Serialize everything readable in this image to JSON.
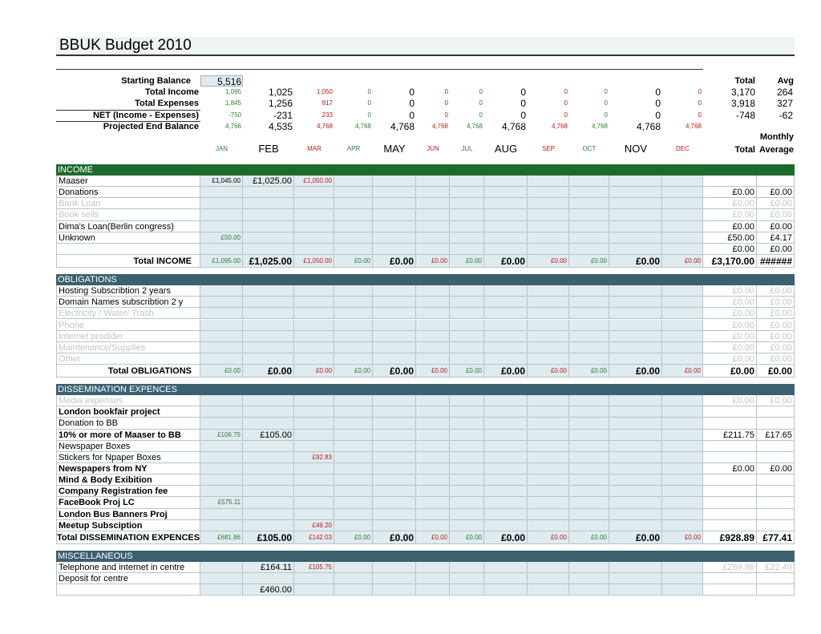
{
  "title": "BBUK Budget 2010",
  "columns": [
    {
      "name": "JAN",
      "color": "#2e7d32",
      "size": "small"
    },
    {
      "name": "FEB",
      "color": "#000000",
      "size": "big"
    },
    {
      "name": "MAR",
      "color": "#b71c1c",
      "size": "small"
    },
    {
      "name": "APR",
      "color": "#2e7d32",
      "size": "small"
    },
    {
      "name": "MAY",
      "color": "#000000",
      "size": "big"
    },
    {
      "name": "JUN",
      "color": "#b71c1c",
      "size": "small"
    },
    {
      "name": "JUL",
      "color": "#2e7d32",
      "size": "small"
    },
    {
      "name": "AUG",
      "color": "#000000",
      "size": "big"
    },
    {
      "name": "SEP",
      "color": "#b71c1c",
      "size": "small"
    },
    {
      "name": "OCT",
      "color": "#2e7d32",
      "size": "small"
    },
    {
      "name": "NOV",
      "color": "#000000",
      "size": "big"
    },
    {
      "name": "DEC",
      "color": "#b71c1c",
      "size": "small"
    }
  ],
  "summary": {
    "starting_balance": {
      "label": "Starting Balance",
      "value": "5,516"
    },
    "total_header": "Total",
    "avg_header": "Avg",
    "rows": [
      {
        "label": "Total Income",
        "cells": [
          "1,095",
          "1,025",
          "1,050",
          "0",
          "0",
          "0",
          "0",
          "0",
          "0",
          "0",
          "0",
          "0",
          "3,170",
          "264"
        ]
      },
      {
        "label": "Total Expenses",
        "cells": [
          "1,845",
          "1,256",
          "817",
          "0",
          "0",
          "0",
          "0",
          "0",
          "0",
          "0",
          "0",
          "0",
          "3,918",
          "327"
        ]
      },
      {
        "label": "NET (Income - Expenses)",
        "cells": [
          "-750",
          "-231",
          "233",
          "0",
          "0",
          "0",
          "0",
          "0",
          "0",
          "0",
          "0",
          "0",
          "-748",
          "-62"
        ]
      },
      {
        "label": "Projected End Balance",
        "cells": [
          "4,766",
          "4,535",
          "4,768",
          "4,768",
          "4,768",
          "4,768",
          "4,768",
          "4,768",
          "4,768",
          "4,768",
          "4,768",
          "4,768",
          null,
          null
        ]
      }
    ]
  },
  "monthly_header": "Monthly",
  "total_header": "Total",
  "average_header": "Average",
  "sections": [
    {
      "title": "INCOME",
      "color": "#1d6b2c",
      "rows": [
        {
          "label": "Maaser",
          "cells": [
            "£1,045.00",
            "£1,025.00",
            "£1,050.00",
            null,
            null,
            null,
            null,
            null,
            null,
            null,
            null,
            null,
            null,
            null
          ]
        },
        {
          "label": "Donations",
          "cells": [
            null,
            null,
            null,
            null,
            null,
            null,
            null,
            null,
            null,
            null,
            null,
            null,
            "£0.00",
            "£0.00"
          ]
        },
        {
          "label": "Bank Loan",
          "muted_label": true,
          "muted_totals": true,
          "cells": [
            null,
            null,
            null,
            null,
            null,
            null,
            null,
            null,
            null,
            null,
            null,
            null,
            "£0.00",
            "£0.00"
          ]
        },
        {
          "label": "Book sells",
          "muted_label": true,
          "muted_totals": true,
          "cells": [
            null,
            null,
            null,
            null,
            null,
            null,
            null,
            null,
            null,
            null,
            null,
            null,
            "£0.00",
            "£0.00"
          ]
        },
        {
          "label": "Dima's Loan(Berlin congress)",
          "cells": [
            null,
            null,
            null,
            null,
            null,
            null,
            null,
            null,
            null,
            null,
            null,
            null,
            "£0.00",
            "£0.00"
          ]
        },
        {
          "label": "Unknown",
          "cells": [
            "£50.00",
            null,
            null,
            null,
            null,
            null,
            null,
            null,
            null,
            null,
            null,
            null,
            "£50.00",
            "£4.17"
          ]
        },
        {
          "label": null,
          "cells": [
            null,
            null,
            null,
            null,
            null,
            null,
            null,
            null,
            null,
            null,
            null,
            null,
            "£0.00",
            "£0.00"
          ]
        }
      ],
      "total": {
        "label": "Total INCOME",
        "cells": [
          "£1,095.00",
          "£1,025.00",
          "£1,050.00",
          "£0.00",
          "£0.00",
          "£0.00",
          "£0.00",
          "£0.00",
          "£0.00",
          "£0.00",
          "£0.00",
          "£0.00",
          "£3,170.00",
          "######"
        ]
      }
    },
    {
      "title": "OBLIGATIONS",
      "color": "#3b6070",
      "rows": [
        {
          "label": "Hosting Subscribtion 2 years",
          "muted_totals": true,
          "cells": [
            null,
            null,
            null,
            null,
            null,
            null,
            null,
            null,
            null,
            null,
            null,
            null,
            "£0.00",
            "£0.00"
          ]
        },
        {
          "label": "Domain Names subscribtion 2 y",
          "muted_totals": true,
          "cells": [
            null,
            null,
            null,
            null,
            null,
            null,
            null,
            null,
            null,
            null,
            null,
            null,
            "£0.00",
            "£0.00"
          ]
        },
        {
          "label": "Electricity / Water/ Trash",
          "muted_label": true,
          "muted_totals": true,
          "cells": [
            null,
            null,
            null,
            null,
            null,
            null,
            null,
            null,
            null,
            null,
            null,
            null,
            "£0.00",
            "£0.00"
          ]
        },
        {
          "label": "Phone",
          "muted_label": true,
          "muted_totals": true,
          "cells": [
            null,
            null,
            null,
            null,
            null,
            null,
            null,
            null,
            null,
            null,
            null,
            null,
            "£0.00",
            "£0.00"
          ]
        },
        {
          "label": "Internet prodider",
          "muted_label": true,
          "muted_totals": true,
          "cells": [
            null,
            null,
            null,
            null,
            null,
            null,
            null,
            null,
            null,
            null,
            null,
            null,
            "£0.00",
            "£0.00"
          ]
        },
        {
          "label": "Maintenance/Supplies",
          "muted_label": true,
          "muted_totals": true,
          "cells": [
            null,
            null,
            null,
            null,
            null,
            null,
            null,
            null,
            null,
            null,
            null,
            null,
            "£0.00",
            "£0.00"
          ]
        },
        {
          "label": "Other",
          "muted_label": true,
          "muted_totals": true,
          "cells": [
            null,
            null,
            null,
            null,
            null,
            null,
            null,
            null,
            null,
            null,
            null,
            null,
            "£0.00",
            "£0.00"
          ]
        }
      ],
      "total": {
        "label": "Total OBLIGATIONS",
        "cells": [
          "£0.00",
          "£0.00",
          "£0.00",
          "£0.00",
          "£0.00",
          "£0.00",
          "£0.00",
          "£0.00",
          "£0.00",
          "£0.00",
          "£0.00",
          "£0.00",
          "£0.00",
          "£0.00"
        ]
      }
    },
    {
      "title": "DISSEMINATION EXPENCES",
      "color": "#3b6070",
      "rows": [
        {
          "label": "Media expenses",
          "muted_label": true,
          "muted_totals": true,
          "cells": [
            null,
            null,
            null,
            null,
            null,
            null,
            null,
            null,
            null,
            null,
            null,
            null,
            "£0.00",
            "£0.00"
          ]
        },
        {
          "label": "London bookfair project",
          "bold": true,
          "cells": [
            null,
            null,
            null,
            null,
            null,
            null,
            null,
            null,
            null,
            null,
            null,
            null,
            null,
            null
          ]
        },
        {
          "label": "Donation to BB",
          "cells": [
            null,
            null,
            null,
            null,
            null,
            null,
            null,
            null,
            null,
            null,
            null,
            null,
            null,
            null
          ]
        },
        {
          "label": "10% or more of Maaser to BB",
          "bold": true,
          "cells": [
            "£106.75",
            "£105.00",
            null,
            null,
            null,
            null,
            null,
            null,
            null,
            null,
            null,
            null,
            "£211.75",
            "£17.65"
          ]
        },
        {
          "label": "Newspaper Boxes",
          "cells": [
            null,
            null,
            null,
            null,
            null,
            null,
            null,
            null,
            null,
            null,
            null,
            null,
            null,
            null
          ]
        },
        {
          "label": "Stickers for Npaper Boxes",
          "cells": [
            null,
            null,
            "£92.83",
            null,
            null,
            null,
            null,
            null,
            null,
            null,
            null,
            null,
            null,
            null
          ]
        },
        {
          "label": "Newspapers from NY",
          "bold": true,
          "cells": [
            null,
            null,
            null,
            null,
            null,
            null,
            null,
            null,
            null,
            null,
            null,
            null,
            "£0.00",
            "£0.00"
          ]
        },
        {
          "label": "Mind & Body Exibition",
          "bold": true,
          "cells": [
            null,
            null,
            null,
            null,
            null,
            null,
            null,
            null,
            null,
            null,
            null,
            null,
            null,
            null
          ]
        },
        {
          "label": "Company Registration fee",
          "bold": true,
          "cells": [
            null,
            null,
            null,
            null,
            null,
            null,
            null,
            null,
            null,
            null,
            null,
            null,
            null,
            null
          ]
        },
        {
          "label": "FaceBook Proj LC",
          "bold": true,
          "cells": [
            "£575.11",
            null,
            null,
            null,
            null,
            null,
            null,
            null,
            null,
            null,
            null,
            null,
            null,
            null
          ]
        },
        {
          "label": "London Bus Banners Proj",
          "bold": true,
          "cells": [
            null,
            null,
            null,
            null,
            null,
            null,
            null,
            null,
            null,
            null,
            null,
            null,
            null,
            null
          ]
        },
        {
          "label": "Meetup Subsciption",
          "bold": true,
          "cells": [
            null,
            null,
            "£49.20",
            null,
            null,
            null,
            null,
            null,
            null,
            null,
            null,
            null,
            null,
            null
          ]
        }
      ],
      "total": {
        "label": "Total DISSEMINATION EXPENCES",
        "cells": [
          "£681.86",
          "£105.00",
          "£142.03",
          "£0.00",
          "£0.00",
          "£0.00",
          "£0.00",
          "£0.00",
          "£0.00",
          "£0.00",
          "£0.00",
          "£0.00",
          "£928.89",
          "£77.41"
        ]
      }
    },
    {
      "title": "MISCELLANEOUS",
      "color": "#3b6070",
      "rows": [
        {
          "label": "Telephone and internet in centre",
          "muted_totals": true,
          "cells": [
            null,
            "£164.11",
            "£105.75",
            null,
            null,
            null,
            null,
            null,
            null,
            null,
            null,
            null,
            "£269.86",
            "£22.49"
          ]
        },
        {
          "label": "Deposit for centre",
          "cells": [
            null,
            null,
            null,
            null,
            null,
            null,
            null,
            null,
            null,
            null,
            null,
            null,
            null,
            null
          ]
        },
        {
          "label": null,
          "cells": [
            null,
            "£460.00",
            null,
            null,
            null,
            null,
            null,
            null,
            null,
            null,
            null,
            null,
            null,
            null
          ]
        }
      ]
    }
  ]
}
